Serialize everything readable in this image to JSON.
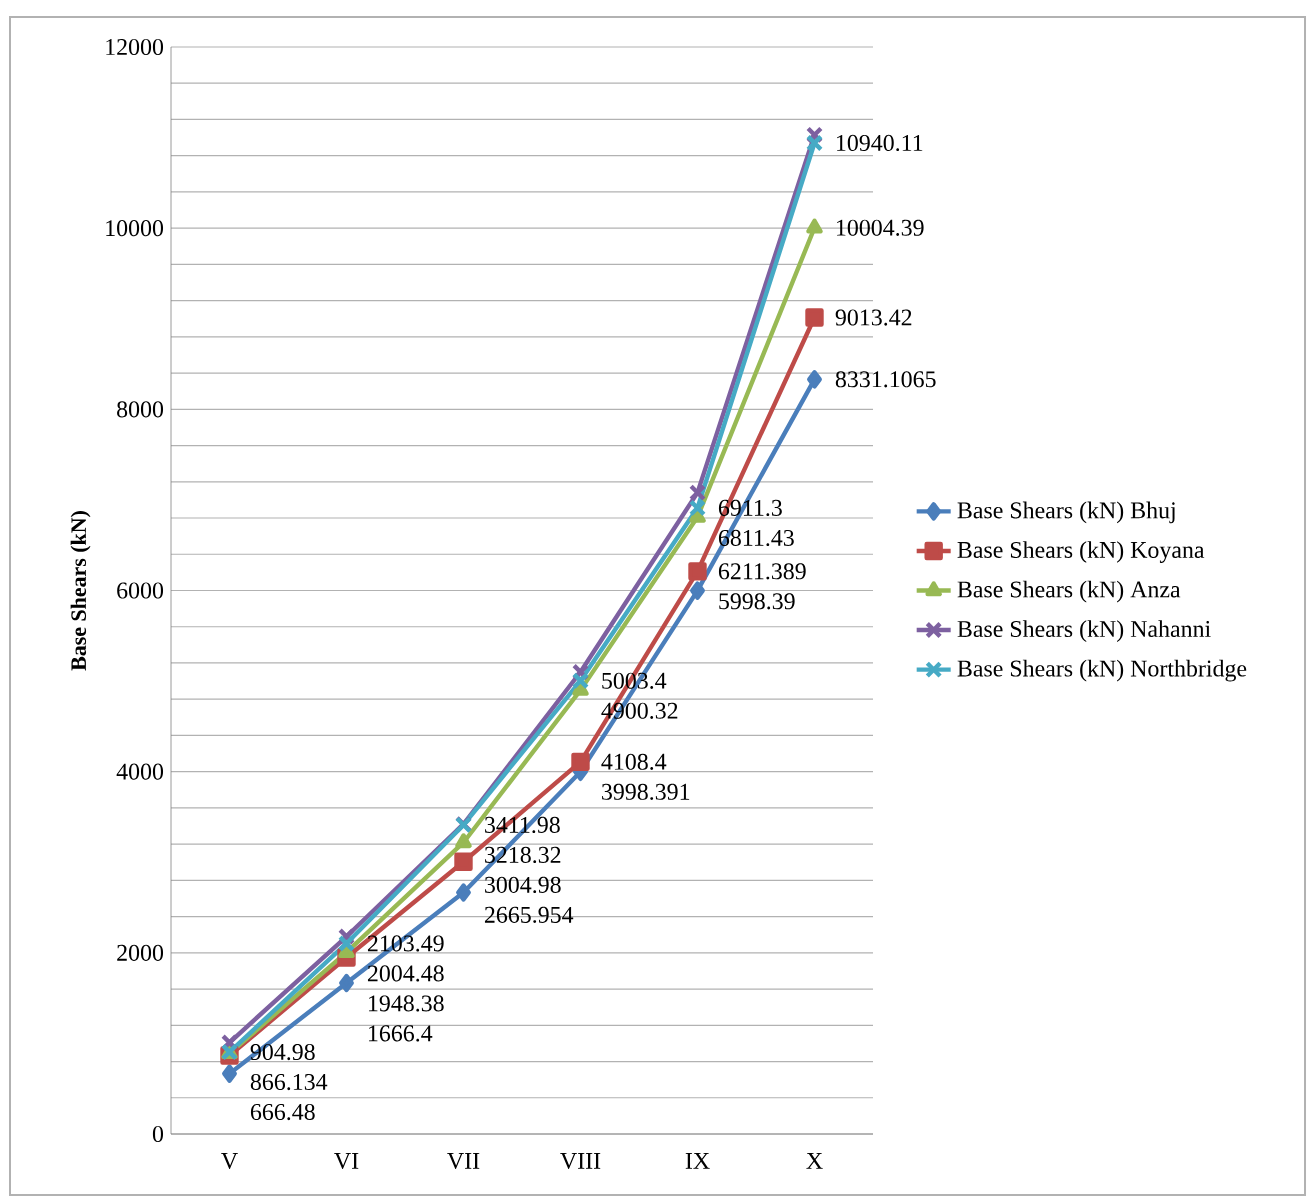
{
  "chart_data": {
    "type": "line",
    "ylabel": "**Base Shears (kN)**",
    "categories": [
      "V",
      "VI",
      "VII",
      "VIII",
      "IX",
      "X"
    ],
    "ylim": [
      0,
      12000
    ],
    "yticks": [
      0,
      {
        "value": 400,
        "label": null
      },
      {
        "value": 800,
        "label": null
      },
      {
        "value": 1200,
        "label": null
      },
      {
        "value": 1600,
        "label": null
      },
      2000,
      {
        "value": 2400,
        "label": null
      },
      {
        "value": 2800,
        "label": null
      },
      {
        "value": 3200,
        "label": null
      },
      {
        "value": 3600,
        "label": null
      },
      4000,
      {
        "value": 4400,
        "label": null
      },
      {
        "value": 4800,
        "label": null
      },
      {
        "value": 5200,
        "label": null
      },
      {
        "value": 5600,
        "label": null
      },
      6000,
      {
        "value": 6400,
        "label": null
      },
      {
        "value": 6800,
        "label": null
      },
      {
        "value": 7200,
        "label": null
      },
      {
        "value": 7600,
        "label": null
      },
      8000,
      {
        "value": 8400,
        "label": null
      },
      {
        "value": 8800,
        "label": null
      },
      {
        "value": 9200,
        "label": null
      },
      {
        "value": 9600,
        "label": null
      },
      10000,
      {
        "value": 10400,
        "label": null
      },
      {
        "value": 10800,
        "label": null
      },
      {
        "value": 11200,
        "label": null
      },
      {
        "value": 11600,
        "label": null
      },
      12000
    ],
    "grid": "y",
    "legend": "right",
    "series": [
      {
        "name": "Base Shears (kN) Bhuj",
        "color": "#4a7ebb",
        "marker": "diamond",
        "values": [
          666.48,
          1666.4,
          2665.954,
          3998.391,
          5998.39,
          8331.1065
        ],
        "value_labels": [
          "666.48",
          "1666.4",
          "2665.954",
          "3998.391",
          "5998.39",
          "8331.1065"
        ]
      },
      {
        "name": "Base Shears (kN) Koyana",
        "color": "#be4b48",
        "marker": "square",
        "values": [
          866.134,
          1948.38,
          3004.98,
          4108.4,
          6211.389,
          9013.42
        ],
        "value_labels": [
          "866.134",
          "1948.38",
          "3004.98",
          "4108.4",
          "6211.389",
          "9013.42"
        ]
      },
      {
        "name": "Base Shears (kN) Anza",
        "color": "#98b954",
        "marker": "triangle",
        "values": [
          890,
          2004.48,
          3218.32,
          4900.32,
          6811.43,
          10004.39
        ],
        "value_labels": [
          null,
          "2004.48",
          "3218.32",
          "4900.32",
          "6811.43",
          "10004.39"
        ]
      },
      {
        "name": "Base Shears (kN) Nahanni",
        "color": "#7d60a0",
        "marker": "cross",
        "values": [
          1010,
          2180,
          3420,
          5100,
          7080,
          11030
        ]
      },
      {
        "name": "Base Shears (kN) Northbridge",
        "color": "#46aac5",
        "marker": "cross",
        "values": [
          904.98,
          2103.49,
          3411.98,
          5003.4,
          6911.3,
          10940.11
        ],
        "value_labels": [
          "904.98",
          "2103.49",
          "3411.98",
          "5003.4",
          "6911.3",
          "10940.11"
        ]
      }
    ]
  }
}
